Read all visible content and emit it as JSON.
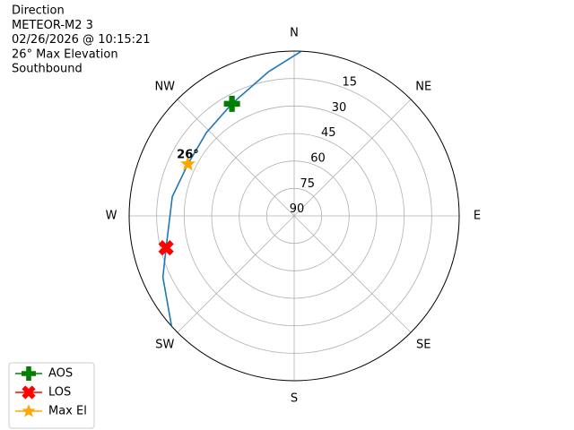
{
  "chart_data": {
    "type": "polar",
    "info_lines": [
      "Direction",
      "METEOR-M2 3",
      "02/26/2026 @ 10:15:21",
      "26° Max Elevation",
      "Southbound"
    ],
    "theta_labels": [
      "N",
      "NE",
      "E",
      "SE",
      "S",
      "SW",
      "W",
      "NW"
    ],
    "rlim": [
      90,
      0
    ],
    "rticks": [
      15,
      30,
      45,
      60,
      75,
      90
    ],
    "grid": true,
    "path": {
      "color": "#1f77b4",
      "azimuth": [
        2.5,
        350,
        331,
        313.5,
        296,
        279,
        256,
        245,
        228
      ],
      "elevation": [
        0,
        10,
        20,
        24,
        25.5,
        22.7,
        18,
        11,
        0
      ]
    },
    "markers": [
      {
        "name": "AOS",
        "color": "#008000",
        "marker": "plus",
        "azimuth": 331,
        "elevation": 20
      },
      {
        "name": "LOS",
        "color": "#ff0000",
        "marker": "x",
        "azimuth": 256,
        "elevation": 18
      },
      {
        "name": "Max El",
        "color": "#ffa500",
        "marker": "star",
        "azimuth": 296,
        "elevation": 25.5
      }
    ],
    "annotation": "26°",
    "legend": "lower left"
  }
}
